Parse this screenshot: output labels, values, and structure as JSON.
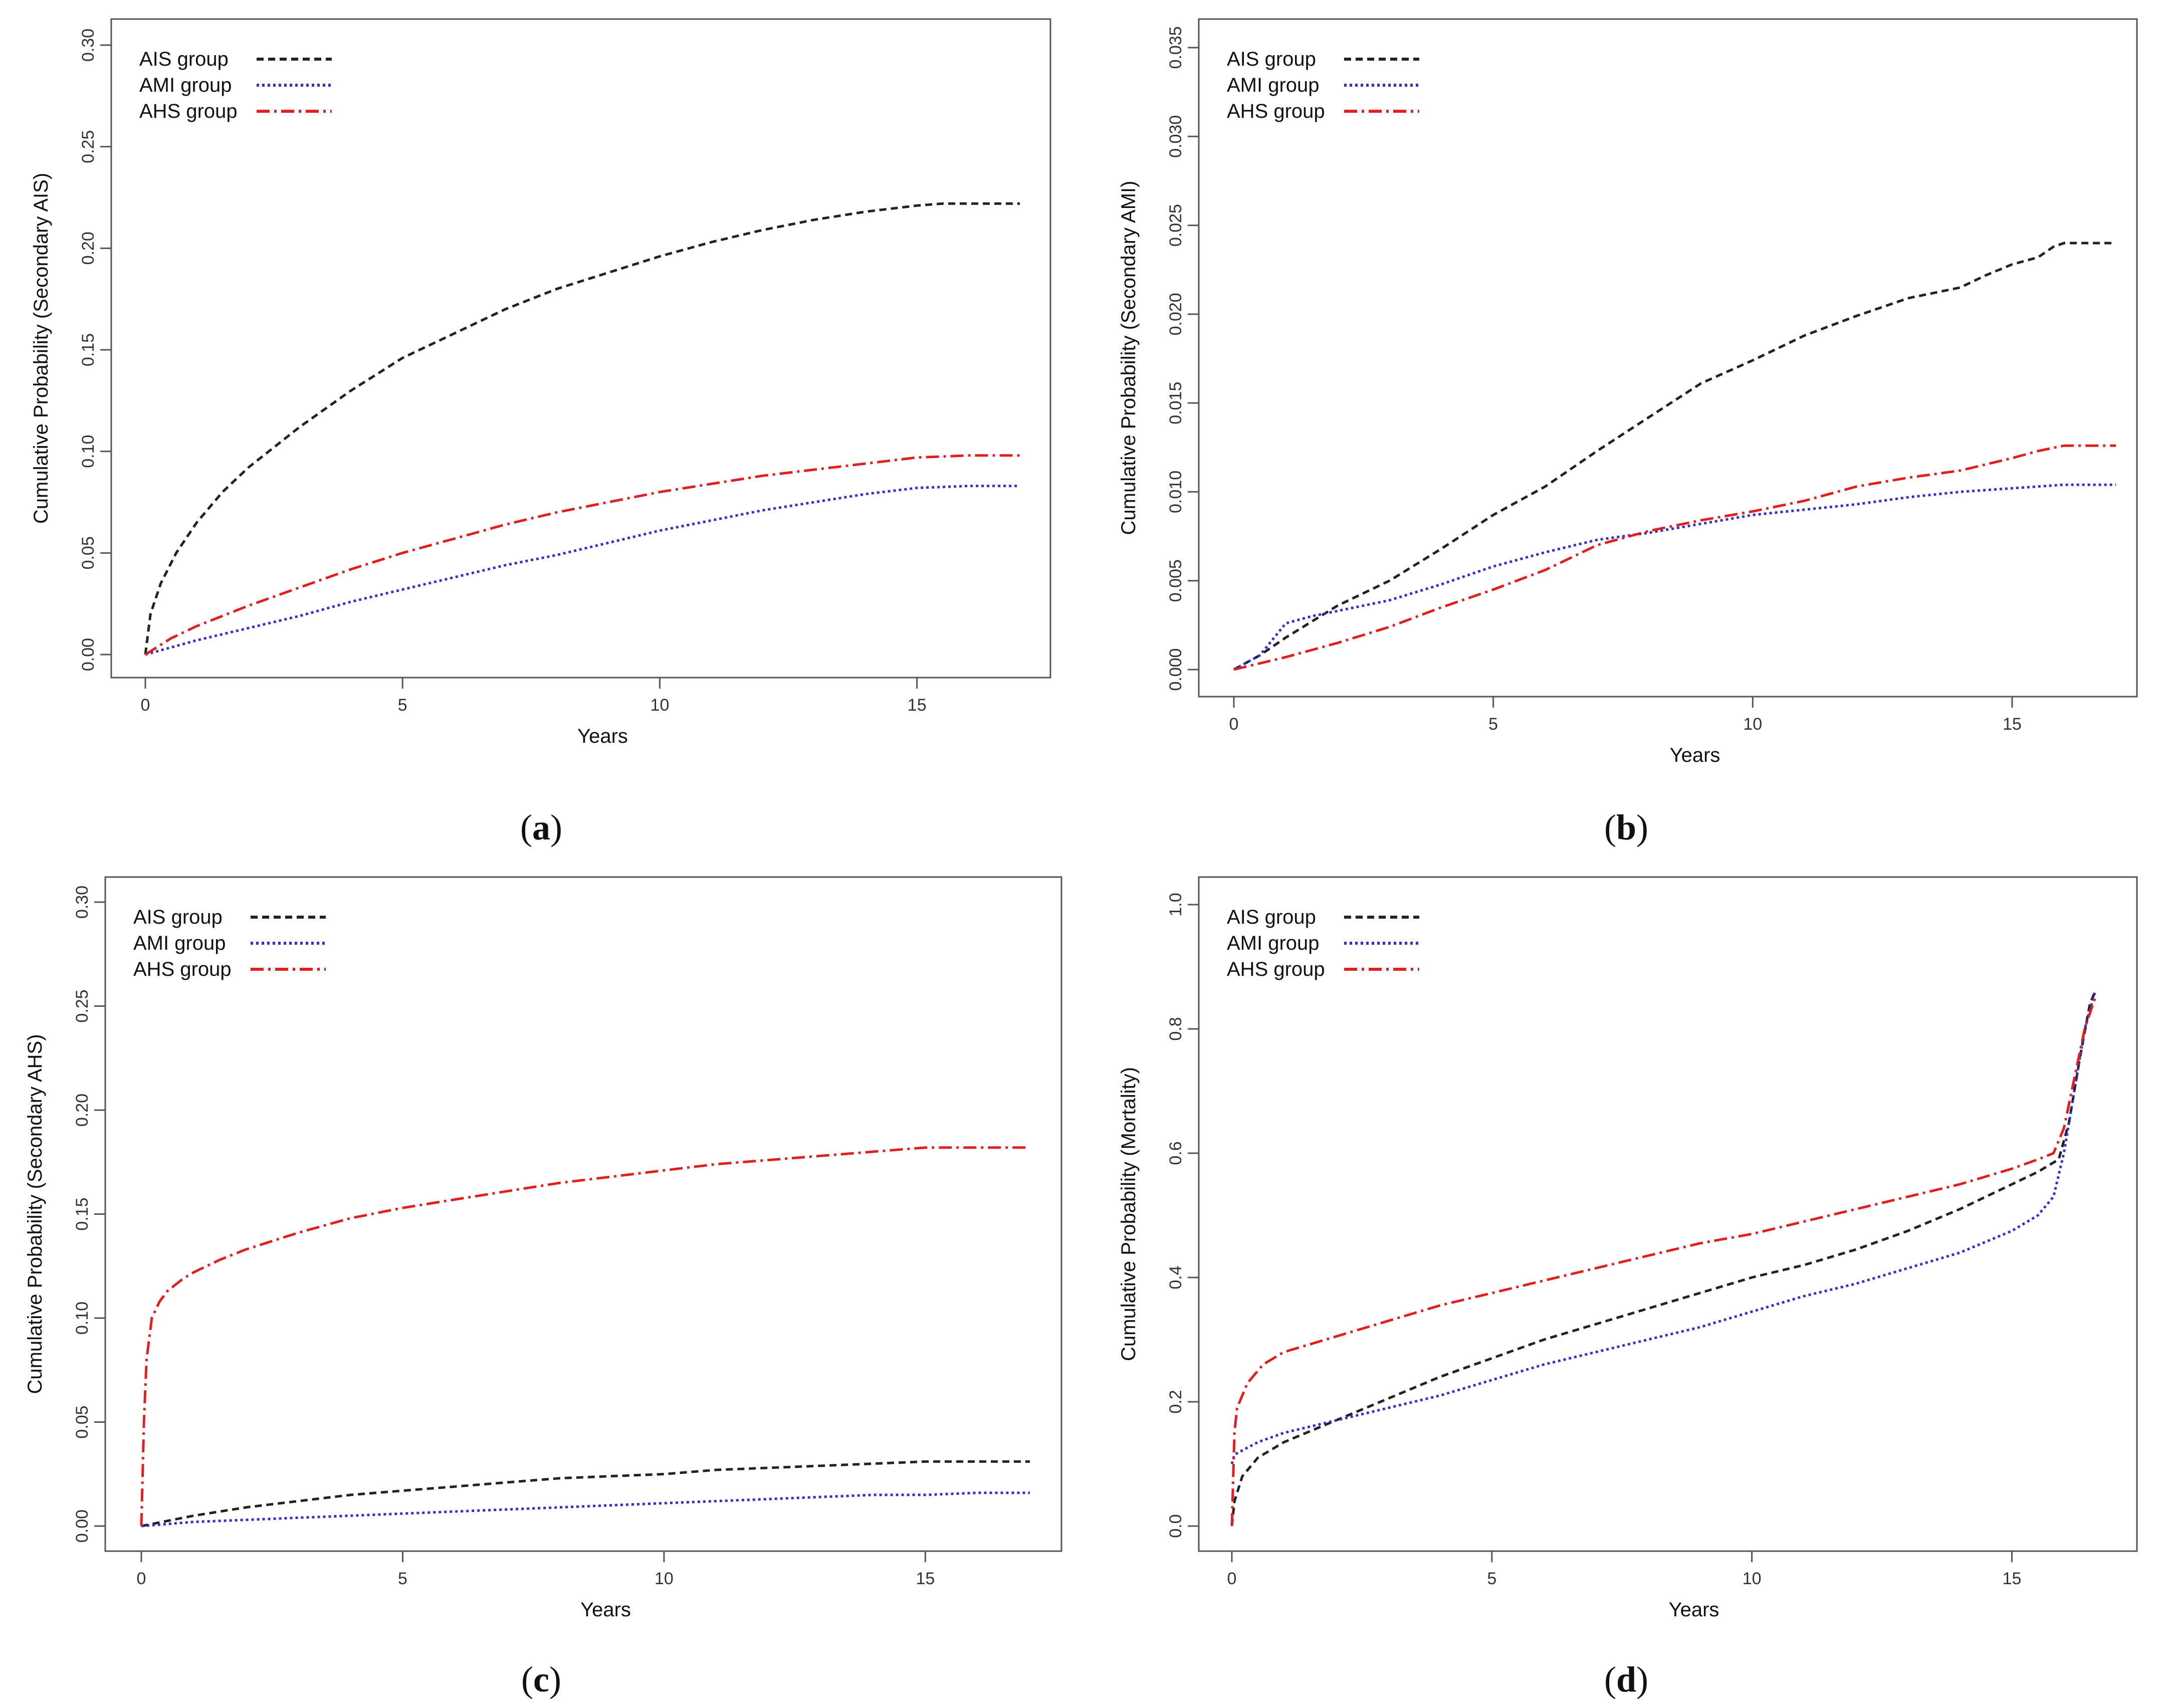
{
  "legend": [
    {
      "label": "AIS group",
      "color": "#222222",
      "dash": "14,9"
    },
    {
      "label": "AMI group",
      "color": "#3030c8",
      "dash": "5,6"
    },
    {
      "label": "AHS group",
      "color": "#e02020",
      "dash": "26,9,5,9"
    }
  ],
  "chart_data": [
    {
      "type": "line",
      "panel": "a",
      "xlabel": "Years",
      "ylabel": "Cumulative Probability (Secondary AIS)",
      "xlim": [
        0,
        17
      ],
      "ylim": [
        0,
        0.3
      ],
      "xticks": [
        0,
        5,
        10,
        15
      ],
      "yticks": [
        "0.00",
        "0.05",
        "0.10",
        "0.15",
        "0.20",
        "0.25",
        "0.30"
      ],
      "legend_position": "top-left",
      "series": [
        {
          "name": "AIS group",
          "x": [
            0,
            0.1,
            0.3,
            0.6,
            1,
            1.5,
            2,
            3,
            4,
            5,
            6,
            7,
            8,
            9,
            10,
            11,
            12,
            13,
            14,
            15,
            15.5,
            16,
            17
          ],
          "y": [
            0,
            0.02,
            0.035,
            0.05,
            0.065,
            0.08,
            0.092,
            0.112,
            0.13,
            0.146,
            0.158,
            0.17,
            0.18,
            0.188,
            0.196,
            0.203,
            0.209,
            0.214,
            0.218,
            0.221,
            0.222,
            0.222,
            0.222
          ]
        },
        {
          "name": "AMI group",
          "x": [
            0,
            1,
            2,
            3,
            4,
            5,
            6,
            7,
            8,
            9,
            10,
            11,
            12,
            13,
            14,
            15,
            16,
            17
          ],
          "y": [
            0,
            0.007,
            0.013,
            0.019,
            0.026,
            0.032,
            0.038,
            0.044,
            0.049,
            0.055,
            0.061,
            0.066,
            0.071,
            0.075,
            0.079,
            0.082,
            0.083,
            0.083
          ]
        },
        {
          "name": "AHS group",
          "x": [
            0,
            0.5,
            1,
            2,
            3,
            4,
            5,
            6,
            7,
            8,
            9,
            10,
            11,
            12,
            13,
            14,
            15,
            16,
            17
          ],
          "y": [
            0,
            0.008,
            0.014,
            0.024,
            0.033,
            0.042,
            0.05,
            0.057,
            0.064,
            0.07,
            0.075,
            0.08,
            0.084,
            0.088,
            0.091,
            0.094,
            0.097,
            0.098,
            0.098
          ]
        }
      ]
    },
    {
      "type": "line",
      "panel": "b",
      "xlabel": "Years",
      "ylabel": "Cumulative Probability (Secondary AMI)",
      "xlim": [
        0,
        17
      ],
      "ylim": [
        0,
        0.035
      ],
      "xticks": [
        0,
        5,
        10,
        15
      ],
      "yticks": [
        "0.000",
        "0.005",
        "0.010",
        "0.015",
        "0.020",
        "0.025",
        "0.030",
        "0.035"
      ],
      "legend_position": "top-left",
      "series": [
        {
          "name": "AIS group",
          "x": [
            0,
            0.5,
            1,
            2,
            3,
            4,
            5,
            6,
            7,
            8,
            9,
            10,
            11,
            12,
            13,
            14,
            14.5,
            15,
            15.5,
            15.8,
            16,
            17
          ],
          "y": [
            0,
            0.0008,
            0.0018,
            0.0036,
            0.005,
            0.0068,
            0.0087,
            0.0103,
            0.0123,
            0.0142,
            0.0161,
            0.0174,
            0.0188,
            0.0199,
            0.0209,
            0.0215,
            0.0222,
            0.0228,
            0.0232,
            0.0238,
            0.024,
            0.024
          ]
        },
        {
          "name": "AMI group",
          "x": [
            0,
            0.5,
            1,
            1.5,
            2,
            3,
            4,
            5,
            6,
            7,
            8,
            9,
            10,
            11,
            12,
            13,
            14,
            15,
            16,
            17
          ],
          "y": [
            0,
            0.0008,
            0.0026,
            0.003,
            0.0033,
            0.0039,
            0.0048,
            0.0058,
            0.0066,
            0.0073,
            0.0077,
            0.0082,
            0.0087,
            0.009,
            0.0093,
            0.0097,
            0.01,
            0.0102,
            0.0104,
            0.0104
          ]
        },
        {
          "name": "AHS group",
          "x": [
            0,
            1,
            2,
            3,
            4,
            5,
            6,
            7,
            8,
            9,
            10,
            11,
            12,
            13,
            14,
            15,
            15.5,
            16,
            17
          ],
          "y": [
            0,
            0.0007,
            0.0015,
            0.0024,
            0.0035,
            0.0045,
            0.0056,
            0.007,
            0.0078,
            0.0084,
            0.0089,
            0.0095,
            0.0103,
            0.0108,
            0.0112,
            0.0119,
            0.0123,
            0.0126,
            0.0126
          ]
        }
      ]
    },
    {
      "type": "line",
      "panel": "c",
      "xlabel": "Years",
      "ylabel": "Cumulative Probability (Secondary AHS)",
      "xlim": [
        0,
        17
      ],
      "ylim": [
        0,
        0.3
      ],
      "xticks": [
        0,
        5,
        10,
        15
      ],
      "yticks": [
        "0.00",
        "0.05",
        "0.10",
        "0.15",
        "0.20",
        "0.25",
        "0.30"
      ],
      "legend_position": "top-left",
      "series": [
        {
          "name": "AIS group",
          "x": [
            0,
            1,
            2,
            3,
            4,
            5,
            6,
            7,
            8,
            9,
            10,
            11,
            12,
            13,
            14,
            15,
            16,
            17
          ],
          "y": [
            0,
            0.005,
            0.009,
            0.012,
            0.015,
            0.017,
            0.019,
            0.021,
            0.023,
            0.024,
            0.025,
            0.027,
            0.028,
            0.029,
            0.03,
            0.031,
            0.031,
            0.031
          ]
        },
        {
          "name": "AMI group",
          "x": [
            0,
            1,
            2,
            3,
            4,
            5,
            6,
            7,
            8,
            9,
            10,
            11,
            12,
            13,
            14,
            15,
            16,
            17
          ],
          "y": [
            0,
            0.002,
            0.003,
            0.004,
            0.005,
            0.006,
            0.007,
            0.008,
            0.009,
            0.01,
            0.011,
            0.012,
            0.013,
            0.014,
            0.015,
            0.015,
            0.016,
            0.016
          ]
        },
        {
          "name": "AHS group",
          "x": [
            0,
            0.05,
            0.1,
            0.2,
            0.35,
            0.5,
            0.8,
            1,
            1.5,
            2,
            3,
            4,
            5,
            6,
            7,
            8,
            9,
            10,
            11,
            12,
            13,
            14,
            15,
            16,
            17
          ],
          "y": [
            0,
            0.05,
            0.08,
            0.1,
            0.108,
            0.113,
            0.119,
            0.122,
            0.128,
            0.133,
            0.141,
            0.148,
            0.153,
            0.157,
            0.161,
            0.165,
            0.168,
            0.171,
            0.174,
            0.176,
            0.178,
            0.18,
            0.182,
            0.182,
            0.182
          ]
        }
      ]
    },
    {
      "type": "line",
      "panel": "d",
      "xlabel": "Years",
      "ylabel": "Cumulative Probability (Mortality)",
      "xlim": [
        0,
        17
      ],
      "ylim": [
        0,
        1.0
      ],
      "xticks": [
        0,
        5,
        10,
        15
      ],
      "yticks": [
        "0.0",
        "0.2",
        "0.4",
        "0.6",
        "0.8",
        "1.0"
      ],
      "legend_position": "top-left",
      "series": [
        {
          "name": "AIS group",
          "x": [
            0,
            0.05,
            0.2,
            0.5,
            1,
            2,
            3,
            4,
            5,
            6,
            7,
            8,
            9,
            10,
            11,
            12,
            13,
            14,
            15,
            15.5,
            15.9,
            16.1,
            16.3,
            16.5,
            16.6
          ],
          "y": [
            0,
            0.04,
            0.08,
            0.11,
            0.135,
            0.17,
            0.205,
            0.24,
            0.27,
            0.3,
            0.325,
            0.35,
            0.375,
            0.4,
            0.42,
            0.445,
            0.475,
            0.51,
            0.55,
            0.57,
            0.59,
            0.65,
            0.75,
            0.84,
            0.86
          ]
        },
        {
          "name": "AMI group",
          "x": [
            0,
            0.05,
            0.5,
            1,
            2,
            3,
            4,
            5,
            6,
            7,
            8,
            9,
            10,
            11,
            12,
            13,
            14,
            15,
            15.5,
            15.8,
            16,
            16.2,
            16.4,
            16.6
          ],
          "y": [
            0.1,
            0.115,
            0.135,
            0.15,
            0.17,
            0.19,
            0.21,
            0.235,
            0.26,
            0.28,
            0.3,
            0.32,
            0.345,
            0.37,
            0.39,
            0.415,
            0.44,
            0.475,
            0.5,
            0.53,
            0.6,
            0.7,
            0.8,
            0.86
          ]
        },
        {
          "name": "AHS group",
          "x": [
            0,
            0.05,
            0.1,
            0.3,
            0.6,
            1,
            2,
            3,
            4,
            5,
            6,
            7,
            8,
            9,
            10,
            11,
            12,
            13,
            14,
            15,
            15.5,
            15.8,
            16,
            16.2,
            16.4,
            16.6
          ],
          "y": [
            0,
            0.15,
            0.19,
            0.23,
            0.26,
            0.28,
            0.305,
            0.33,
            0.355,
            0.375,
            0.395,
            0.415,
            0.435,
            0.455,
            0.47,
            0.49,
            0.51,
            0.53,
            0.55,
            0.575,
            0.59,
            0.6,
            0.64,
            0.72,
            0.8,
            0.85
          ]
        }
      ]
    }
  ],
  "captions": [
    "a",
    "b",
    "c",
    "d"
  ]
}
